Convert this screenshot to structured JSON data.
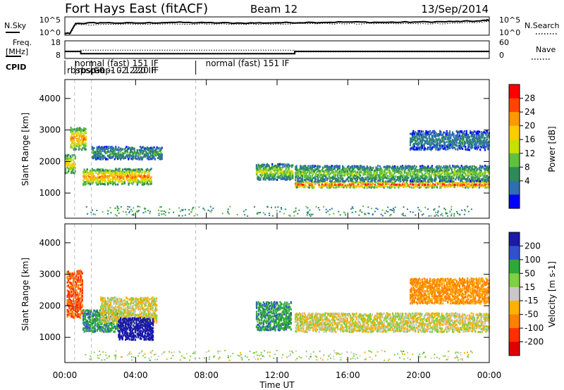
{
  "header": {
    "radar_title": "Fort Hays East (fitACF)",
    "beam": "Beam 12",
    "date": "13/Sep/2014"
  },
  "noise_panel": {
    "left_label": "N.Sky",
    "right_label": "N.Search",
    "left_ticks": [
      "10^5",
      "10^0"
    ],
    "right_ticks": [
      "10^5",
      "10^0"
    ]
  },
  "freq_panel": {
    "left_label_line1": "Freq.",
    "left_label_line2": "[MHz]",
    "right_label": "Nave",
    "left_ticks": [
      "18",
      "8"
    ],
    "right_ticks": [
      "60",
      "0"
    ]
  },
  "cpid": {
    "label": "CPID",
    "segments": [
      {
        "start": 0.0,
        "text_top": "normal (fast) 151 IF",
        "text_bottom": "rbspscan"
      },
      {
        "start": 0.6,
        "text_top": "",
        "text_bottom": "rbsp-0 -1 -2 220 IF"
      },
      {
        "start": 1.5,
        "text_top": "",
        "text_bottom": "Gep- 0 1 220 IF"
      },
      {
        "start": 7.4,
        "text_top": "normal (fast) 151 IF",
        "text_bottom": ""
      }
    ]
  },
  "power_colorbar": {
    "label": "Power [dB]",
    "ticks": [
      "28",
      "24",
      "20",
      "16",
      "12",
      "8",
      "4"
    ],
    "colors": [
      "#ff0000",
      "#ff4400",
      "#ff9900",
      "#ffcc00",
      "#c8e000",
      "#60c040",
      "#2e8b57",
      "#2f6fb0",
      "#0000ff"
    ]
  },
  "velocity_colorbar": {
    "label": "Velocity [m s-1]",
    "ticks": [
      "200",
      "100",
      "50",
      "15",
      "-15",
      "-50",
      "-100",
      "-200"
    ],
    "colors": [
      "#1a1aa8",
      "#3050d0",
      "#2ea83a",
      "#80d040",
      "#c8c8c8",
      "#ffb000",
      "#ff8000",
      "#ff3000",
      "#e00000"
    ]
  },
  "chart_data": [
    {
      "type": "line",
      "panel": "noise",
      "x": [
        0,
        0.3,
        0.6,
        2,
        4,
        6,
        8,
        10,
        12,
        14,
        16,
        18,
        20,
        22,
        23.5,
        24
      ],
      "series": [
        {
          "name": "N.Sky",
          "values": [
            0.5,
            0.5,
            3.2,
            3.4,
            3.3,
            3.5,
            3.4,
            3.3,
            3.4,
            3.5,
            3.6,
            3.5,
            3.6,
            3.7,
            3.9,
            4.2
          ]
        },
        {
          "name": "N.Search",
          "values": [
            0.5,
            0.5,
            2.8,
            2.9,
            3.0,
            3.1,
            3.0,
            3.0,
            3.1,
            3.2,
            3.1,
            3.2,
            3.1,
            3.3,
            3.5,
            3.8
          ]
        }
      ],
      "ylim": [
        0,
        5
      ]
    },
    {
      "type": "line",
      "panel": "frequency",
      "x": [
        0,
        0.9,
        0.9,
        13.0,
        13.0,
        24
      ],
      "series": [
        {
          "name": "Freq.",
          "values": [
            12,
            12,
            10.7,
            10.7,
            12,
            12
          ]
        },
        {
          "name": "Nave",
          "values": [
            22,
            22,
            28,
            28,
            22,
            22
          ]
        }
      ],
      "ylim": [
        8,
        18
      ]
    },
    {
      "type": "heatmap",
      "panel": "power",
      "xlabel": "Time UT",
      "ylabel": "Slant Range [km]",
      "xlim": [
        0,
        24
      ],
      "ylim": [
        200,
        4600
      ],
      "x_ticks": [
        "00:00",
        "04:00",
        "08:00",
        "12:00",
        "16:00",
        "20:00",
        "00:00"
      ],
      "y_ticks": [
        1000,
        2000,
        3000,
        4000
      ],
      "features": [
        {
          "from": 0.0,
          "to": 0.6,
          "range_center": 1950,
          "range_width": 600,
          "power": 18
        },
        {
          "from": 0.3,
          "to": 1.2,
          "range_center": 2750,
          "range_width": 700,
          "power": 22
        },
        {
          "from": 1.0,
          "to": 4.9,
          "range_center": 1550,
          "range_width": 500,
          "power": 22
        },
        {
          "from": 1.5,
          "to": 5.5,
          "range_center": 2300,
          "range_width": 400,
          "power": 8
        },
        {
          "from": 10.8,
          "to": 12.9,
          "range_center": 1700,
          "range_width": 500,
          "power": 14
        },
        {
          "from": 13.0,
          "to": 24.0,
          "range_center": 1300,
          "range_width": 200,
          "power": 26
        },
        {
          "from": 13.0,
          "to": 24.0,
          "range_center": 1650,
          "range_width": 500,
          "power": 12
        },
        {
          "from": 19.5,
          "to": 24.0,
          "range_center": 2700,
          "range_width": 600,
          "power": 6
        }
      ]
    },
    {
      "type": "heatmap",
      "panel": "velocity",
      "xlabel": "Time UT",
      "ylabel": "Slant Range [km]",
      "xlim": [
        0,
        24
      ],
      "ylim": [
        200,
        4600
      ],
      "x_ticks": [
        "00:00",
        "04:00",
        "08:00",
        "12:00",
        "16:00",
        "20:00",
        "00:00"
      ],
      "y_ticks": [
        1000,
        2000,
        3000,
        4000
      ],
      "features": [
        {
          "from": 0.1,
          "to": 1.0,
          "range_center": 2400,
          "range_width": 1500,
          "velocity": -80
        },
        {
          "from": 1.0,
          "to": 3.0,
          "range_center": 1550,
          "range_width": 700,
          "velocity": 60
        },
        {
          "from": 2.0,
          "to": 5.2,
          "range_center": 1900,
          "range_width": 800,
          "velocity": 0
        },
        {
          "from": 3.0,
          "to": 5.0,
          "range_center": 1300,
          "range_width": 700,
          "velocity": 180
        },
        {
          "from": 10.8,
          "to": 12.8,
          "range_center": 1700,
          "range_width": 900,
          "velocity": 60
        },
        {
          "from": 13.0,
          "to": 24.0,
          "range_center": 1500,
          "range_width": 600,
          "velocity": 0
        },
        {
          "from": 19.5,
          "to": 24.0,
          "range_center": 2500,
          "range_width": 800,
          "velocity": -40
        }
      ]
    }
  ]
}
